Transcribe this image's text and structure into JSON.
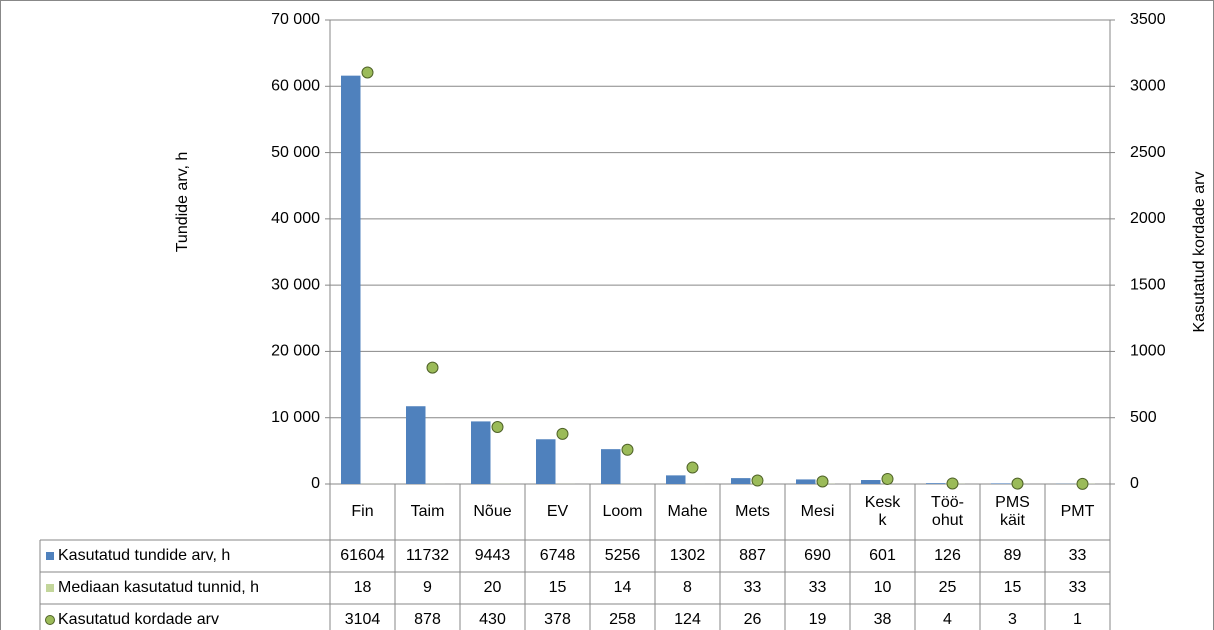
{
  "chart_data": {
    "type": "bar",
    "categories": [
      "Fin",
      "Taim",
      "Nõue",
      "EV",
      "Loom",
      "Mahe",
      "Mets",
      "Mesi",
      "Kesk\nk",
      "Töö-\nohut",
      "PMS\nkäit",
      "PMT"
    ],
    "series": [
      {
        "name": "Kasutatud tundide arv, h",
        "color": "#4f81bd",
        "type": "bar",
        "values": [
          61604,
          11732,
          9443,
          6748,
          5256,
          1302,
          887,
          690,
          601,
          126,
          89,
          33
        ]
      },
      {
        "name": "Mediaan kasutatud tunnid, h",
        "color": "#c3d69b",
        "type": "bar",
        "values": [
          18,
          9,
          20,
          15,
          14,
          8,
          33,
          33,
          10,
          25,
          15,
          33
        ]
      },
      {
        "name": "Kasutatud kordade arv",
        "color": "#9bbb59",
        "type": "scatter",
        "axis": "y2",
        "values": [
          3104,
          878,
          430,
          378,
          258,
          124,
          26,
          19,
          38,
          4,
          3,
          1
        ]
      }
    ],
    "ylabel": "Tundide arv, h",
    "y2label": "Kasutatud kordade arv",
    "ylim": [
      0,
      70000
    ],
    "yticks": [
      0,
      {
        "value": 10000,
        "label": "10 000"
      },
      {
        "value": 20000,
        "label": "20 000"
      },
      {
        "value": 30000,
        "label": "30 000"
      },
      {
        "value": 40000,
        "label": "40 000"
      },
      {
        "value": 50000,
        "label": "50 000"
      },
      {
        "value": 60000,
        "label": "60 000"
      },
      {
        "value": 70000,
        "label": "70 000"
      }
    ],
    "y2lim": [
      0,
      3500
    ],
    "y2ticks": [
      0,
      500,
      1000,
      1500,
      2000,
      2500,
      3000,
      3500
    ],
    "grid": true
  }
}
